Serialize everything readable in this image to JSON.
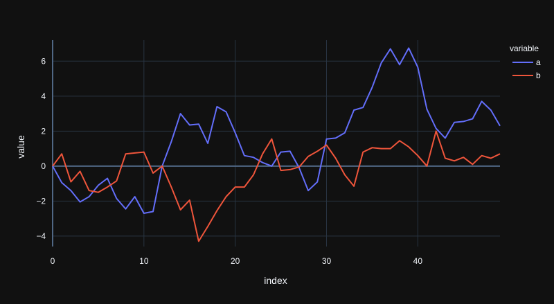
{
  "chart_data": {
    "type": "line",
    "xlabel": "index",
    "ylabel": "value",
    "legend_title": "variable",
    "legend_position": "top-right",
    "grid": true,
    "xlim": [
      0,
      49
    ],
    "ylim": [
      -4.6,
      7.2
    ],
    "x_ticks": [
      0,
      10,
      20,
      30,
      40
    ],
    "y_ticks": [
      -4,
      -2,
      0,
      2,
      4,
      6
    ],
    "x": [
      0,
      1,
      2,
      3,
      4,
      5,
      6,
      7,
      8,
      9,
      10,
      11,
      12,
      13,
      14,
      15,
      16,
      17,
      18,
      19,
      20,
      21,
      22,
      23,
      24,
      25,
      26,
      27,
      28,
      29,
      30,
      31,
      32,
      33,
      34,
      35,
      36,
      37,
      38,
      39,
      40,
      41,
      42,
      43,
      44,
      45,
      46,
      47,
      48,
      49
    ],
    "series": [
      {
        "name": "a",
        "color": "#636efa",
        "values": [
          0,
          -0.95,
          -1.4,
          -2.05,
          -1.75,
          -1.1,
          -0.7,
          -1.85,
          -2.45,
          -1.75,
          -2.7,
          -2.6,
          0,
          1.4,
          3.0,
          2.35,
          2.4,
          1.3,
          3.4,
          3.1,
          1.9,
          0.6,
          0.5,
          0.2,
          0,
          0.8,
          0.85,
          -0.1,
          -1.4,
          -0.9,
          1.55,
          1.6,
          1.9,
          3.2,
          3.35,
          4.5,
          5.9,
          6.7,
          5.8,
          6.75,
          5.65,
          3.25,
          2.15,
          1.6,
          2.5,
          2.55,
          2.7,
          3.7,
          3.2,
          2.3
        ]
      },
      {
        "name": "b",
        "color": "#ef553b",
        "values": [
          0,
          0.7,
          -0.9,
          -0.3,
          -1.4,
          -1.5,
          -1.2,
          -0.85,
          0.7,
          0.75,
          0.8,
          -0.4,
          0,
          -1.2,
          -2.5,
          -1.95,
          -4.3,
          -3.45,
          -2.55,
          -1.75,
          -1.2,
          -1.2,
          -0.5,
          0.7,
          1.55,
          -0.25,
          -0.2,
          -0.05,
          0.55,
          0.85,
          1.2,
          0.45,
          -0.5,
          -1.15,
          0.8,
          1.05,
          1.0,
          1.0,
          1.45,
          1.1,
          0.6,
          0,
          2.0,
          0.45,
          0.3,
          0.5,
          0.1,
          0.6,
          0.45,
          0.7
        ]
      }
    ]
  }
}
